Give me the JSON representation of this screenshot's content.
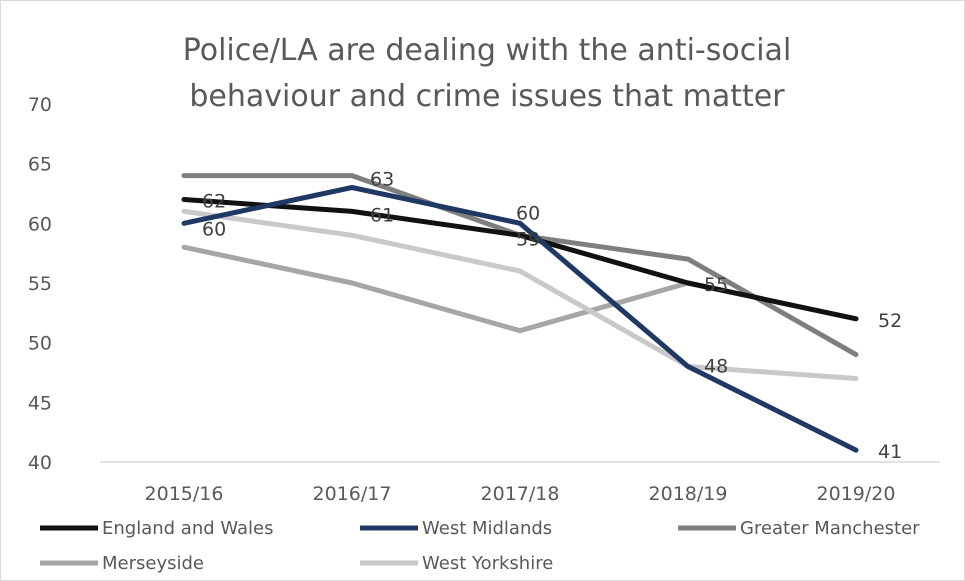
{
  "chart_data": {
    "type": "line",
    "title_lines": [
      "Police/LA are dealing with the anti-social",
      "behaviour and crime issues that matter"
    ],
    "xlabel": "",
    "ylabel": "",
    "categories": [
      "2015/16",
      "2016/17",
      "2017/18",
      "2018/19",
      "2019/20"
    ],
    "ylim": [
      40,
      70
    ],
    "yticks": [
      40,
      45,
      50,
      55,
      60,
      65,
      70
    ],
    "grid": false,
    "legend_position": "bottom",
    "series": [
      {
        "name": "England and Wales",
        "values": [
          62,
          61,
          59,
          55,
          52
        ],
        "color": "#111111"
      },
      {
        "name": "West Midlands",
        "values": [
          60,
          63,
          60,
          48,
          41
        ],
        "color": "#1f3864"
      },
      {
        "name": "Greater Manchester",
        "values": [
          64,
          64,
          59,
          57,
          49
        ],
        "color": "#7f7f7f"
      },
      {
        "name": "Merseyside",
        "values": [
          58,
          55,
          51,
          55,
          52
        ],
        "color": "#a6a6a6"
      },
      {
        "name": "West Yorkshire",
        "values": [
          61,
          59,
          56,
          48,
          47
        ],
        "color": "#c9c9c9"
      }
    ],
    "data_labels": [
      {
        "series": "England and Wales",
        "category": "2015/16",
        "text": "62"
      },
      {
        "series": "West Midlands",
        "category": "2015/16",
        "text": "60"
      },
      {
        "series": "West Midlands",
        "category": "2016/17",
        "text": "63"
      },
      {
        "series": "England and Wales",
        "category": "2016/17",
        "text": "61"
      },
      {
        "series": "West Midlands",
        "category": "2017/18",
        "text": "60"
      },
      {
        "series": "England and Wales",
        "category": "2017/18",
        "text": "59"
      },
      {
        "series": "England and Wales",
        "category": "2018/19",
        "text": "55"
      },
      {
        "series": "West Midlands",
        "category": "2018/19",
        "text": "48"
      },
      {
        "series": "England and Wales",
        "category": "2019/20",
        "text": "52"
      },
      {
        "series": "West Midlands",
        "category": "2019/20",
        "text": "41"
      }
    ]
  }
}
